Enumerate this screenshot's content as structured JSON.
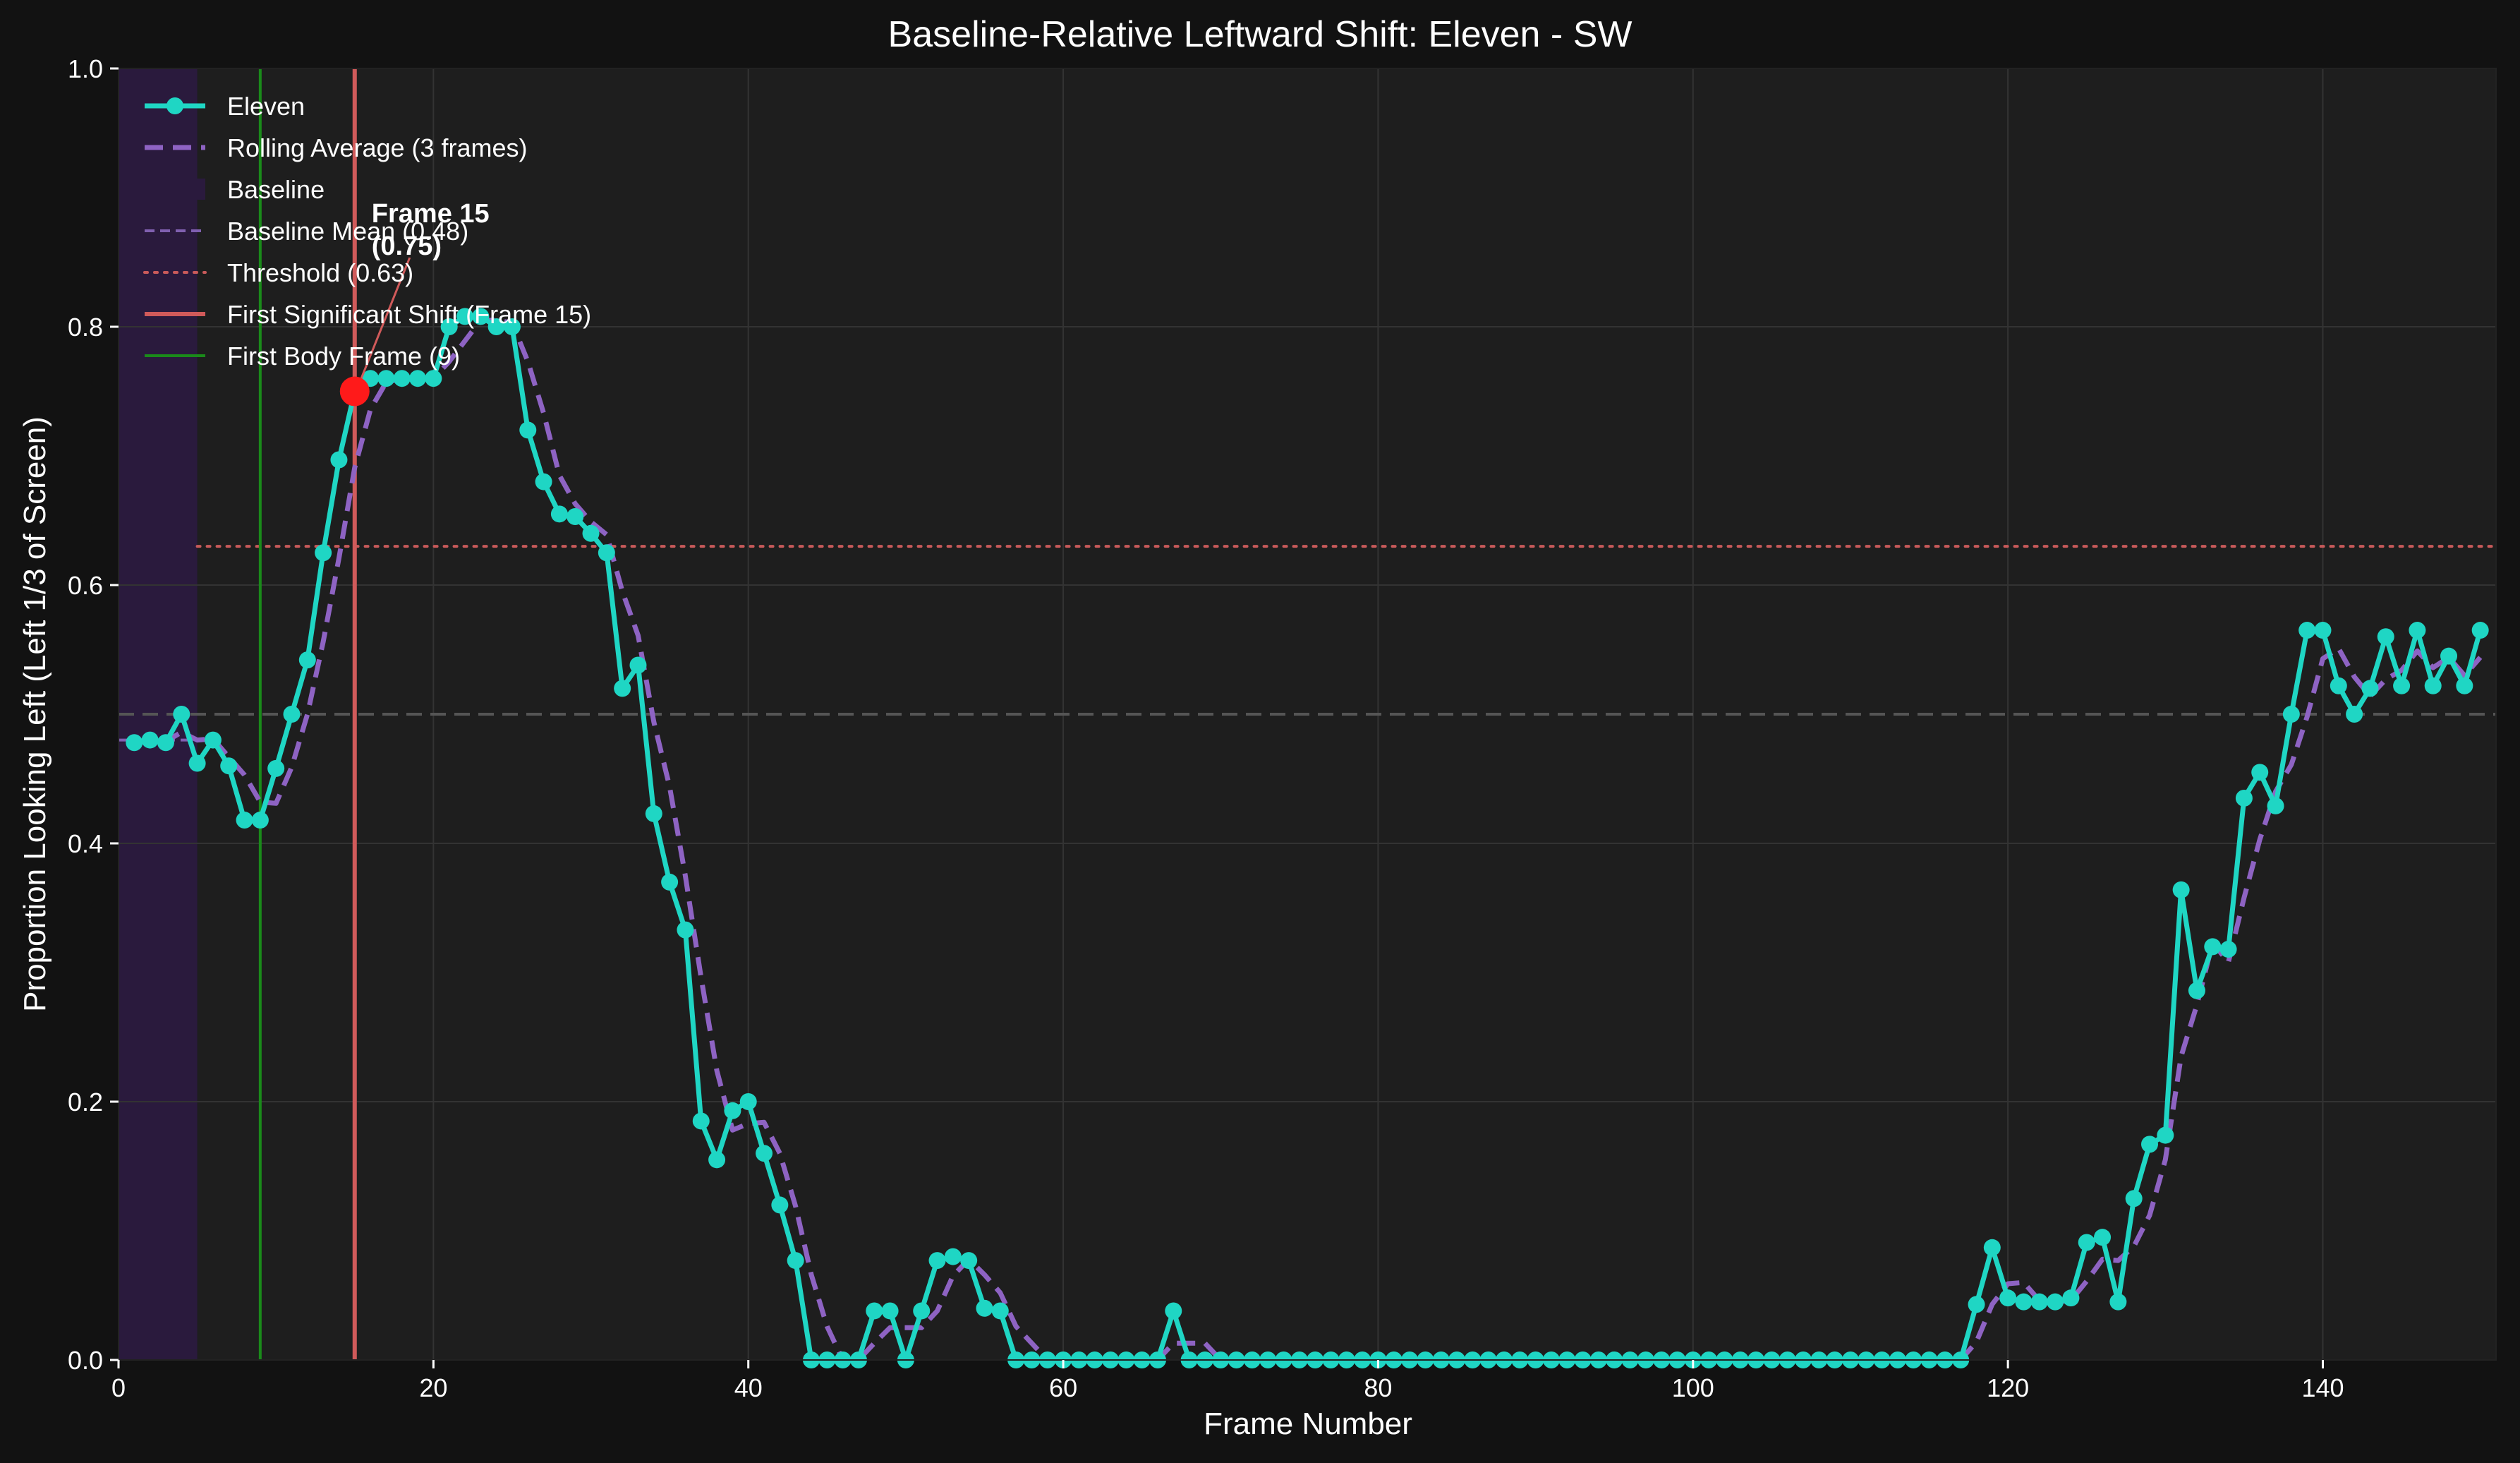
{
  "chart_data": {
    "type": "line",
    "title": "Baseline-Relative Leftward Shift: Eleven - SW",
    "xlabel": "Frame Number",
    "ylabel": "Proportion Looking Left (Left 1/3 of Screen)",
    "xlim": [
      0,
      151
    ],
    "ylim": [
      0,
      1.0
    ],
    "xticks": [
      0,
      20,
      40,
      60,
      80,
      100,
      120,
      140
    ],
    "yticks": [
      0.0,
      0.2,
      0.4,
      0.6,
      0.8,
      1.0
    ],
    "xtick_labels": [
      "0",
      "20",
      "40",
      "60",
      "80",
      "100",
      "120",
      "140"
    ],
    "ytick_labels": [
      "0.0",
      "0.2",
      "0.4",
      "0.6",
      "0.8",
      "1.0"
    ],
    "grid": true,
    "legend_position": "upper-left",
    "colors": {
      "eleven": "#1fd6c4",
      "rolling": "#8e63c3",
      "baseline_band": "#2a1a3d",
      "baseline_mean": "#8060b0",
      "threshold": "#c85a5a",
      "shift_line": "#d05a5a",
      "body_line": "#1a8a1a",
      "ref_line": "#555555",
      "highlight": "#ff1a1a"
    },
    "baseline_span": [
      0,
      5
    ],
    "reference_line": 0.5,
    "baseline_mean": 0.48,
    "threshold": 0.63,
    "first_shift_frame": 15,
    "first_body_frame": 9,
    "highlight_point": {
      "x": 15,
      "y": 0.75,
      "label_line1": "Frame 15",
      "label_line2": "(0.75)"
    },
    "legend": [
      {
        "label": "Eleven",
        "style": "line-marker"
      },
      {
        "label": "Rolling Average (3 frames)",
        "style": "dashed"
      },
      {
        "label": "Baseline",
        "style": "patch"
      },
      {
        "label": "Baseline Mean (0.48)",
        "style": "dashed-small"
      },
      {
        "label": "Threshold (0.63)",
        "style": "dotted"
      },
      {
        "label": "First Significant Shift (Frame 15)",
        "style": "solid-red"
      },
      {
        "label": "First Body Frame (9)",
        "style": "solid-green"
      }
    ],
    "series": [
      {
        "name": "Eleven",
        "x": [
          1,
          2,
          3,
          4,
          5,
          6,
          7,
          8,
          9,
          10,
          11,
          12,
          13,
          14,
          15,
          16,
          17,
          18,
          19,
          20,
          21,
          22,
          23,
          24,
          25,
          26,
          27,
          28,
          29,
          30,
          31,
          32,
          33,
          34,
          35,
          36,
          37,
          38,
          39,
          40,
          41,
          42,
          43,
          44,
          45,
          46,
          47,
          48,
          49,
          50,
          51,
          52,
          53,
          54,
          55,
          56,
          57,
          58,
          59,
          60,
          61,
          62,
          63,
          64,
          65,
          66,
          67,
          68,
          69,
          70,
          71,
          72,
          73,
          74,
          75,
          76,
          77,
          78,
          79,
          80,
          81,
          82,
          83,
          84,
          85,
          86,
          87,
          88,
          89,
          90,
          91,
          92,
          93,
          94,
          95,
          96,
          97,
          98,
          99,
          100,
          101,
          102,
          103,
          104,
          105,
          106,
          107,
          108,
          109,
          110,
          111,
          112,
          113,
          114,
          115,
          116,
          117,
          118,
          119,
          120,
          121,
          122,
          123,
          124,
          125,
          126,
          127,
          128,
          129,
          130,
          131,
          132,
          133,
          134,
          135,
          136,
          137,
          138,
          139,
          140,
          141,
          142,
          143,
          144,
          145,
          146,
          147,
          148,
          149,
          150
        ],
        "y": [
          0.478,
          0.48,
          0.478,
          0.5,
          0.462,
          0.48,
          0.46,
          0.418,
          0.418,
          0.458,
          0.5,
          0.542,
          0.625,
          0.697,
          0.75,
          0.76,
          0.76,
          0.76,
          0.76,
          0.76,
          0.8,
          0.808,
          0.808,
          0.8,
          0.8,
          0.72,
          0.68,
          0.655,
          0.653,
          0.64,
          0.625,
          0.52,
          0.538,
          0.423,
          0.37,
          0.333,
          0.185,
          0.155,
          0.193,
          0.2,
          0.16,
          0.12,
          0.077,
          0.0,
          0.0,
          0.0,
          0.0,
          0.038,
          0.038,
          0.0,
          0.038,
          0.077,
          0.08,
          0.077,
          0.04,
          0.038,
          0.0,
          0.0,
          0.0,
          0.0,
          0.0,
          0.0,
          0.0,
          0.0,
          0.0,
          0.0,
          0.038,
          0.0,
          0.0,
          0.0,
          0.0,
          0.0,
          0.0,
          0.0,
          0.0,
          0.0,
          0.0,
          0.0,
          0.0,
          0.0,
          0.0,
          0.0,
          0.0,
          0.0,
          0.0,
          0.0,
          0.0,
          0.0,
          0.0,
          0.0,
          0.0,
          0.0,
          0.0,
          0.0,
          0.0,
          0.0,
          0.0,
          0.0,
          0.0,
          0.0,
          0.0,
          0.0,
          0.0,
          0.0,
          0.0,
          0.0,
          0.0,
          0.0,
          0.0,
          0.0,
          0.0,
          0.0,
          0.0,
          0.0,
          0.0,
          0.0,
          0.0,
          0.043,
          0.087,
          0.048,
          0.045,
          0.045,
          0.045,
          0.048,
          0.091,
          0.095,
          0.045,
          0.125,
          0.167,
          0.174,
          0.364,
          0.286,
          0.32,
          0.318,
          0.435,
          0.455,
          0.429,
          0.5,
          0.565,
          0.565,
          0.522,
          0.5,
          0.52,
          0.56,
          0.522,
          0.565,
          0.522,
          0.545,
          0.522,
          0.565
        ]
      },
      {
        "name": "Rolling Average (3 frames)",
        "x": [
          1,
          2,
          3,
          4,
          5,
          6,
          7,
          8,
          9,
          10,
          11,
          12,
          13,
          14,
          15,
          16,
          17,
          18,
          19,
          20,
          21,
          22,
          23,
          24,
          25,
          26,
          27,
          28,
          29,
          30,
          31,
          32,
          33,
          34,
          35,
          36,
          37,
          38,
          39,
          40,
          41,
          42,
          43,
          44,
          45,
          46,
          47,
          48,
          49,
          50,
          51,
          52,
          53,
          54,
          55,
          56,
          57,
          58,
          59,
          60,
          61,
          62,
          63,
          64,
          65,
          66,
          67,
          68,
          69,
          70,
          71,
          72,
          73,
          74,
          75,
          76,
          77,
          78,
          79,
          80,
          81,
          82,
          83,
          84,
          85,
          86,
          87,
          88,
          89,
          90,
          91,
          92,
          93,
          94,
          95,
          96,
          97,
          98,
          99,
          100,
          101,
          102,
          103,
          104,
          105,
          106,
          107,
          108,
          109,
          110,
          111,
          112,
          113,
          114,
          115,
          116,
          117,
          118,
          119,
          120,
          121,
          122,
          123,
          124,
          125,
          126,
          127,
          128,
          129,
          130,
          131,
          132,
          133,
          134,
          135,
          136,
          137,
          138,
          139,
          140,
          141,
          142,
          143,
          144,
          145,
          146,
          147,
          148,
          149,
          150
        ],
        "y": [
          0.478,
          0.479,
          0.479,
          0.486,
          0.48,
          0.481,
          0.467,
          0.453,
          0.432,
          0.431,
          0.459,
          0.5,
          0.556,
          0.621,
          0.691,
          0.736,
          0.757,
          0.76,
          0.76,
          0.76,
          0.773,
          0.789,
          0.805,
          0.805,
          0.803,
          0.773,
          0.733,
          0.685,
          0.663,
          0.649,
          0.639,
          0.595,
          0.561,
          0.494,
          0.444,
          0.375,
          0.296,
          0.224,
          0.178,
          0.183,
          0.184,
          0.16,
          0.119,
          0.066,
          0.026,
          0.0,
          0.0,
          0.013,
          0.025,
          0.025,
          0.025,
          0.038,
          0.065,
          0.078,
          0.066,
          0.052,
          0.026,
          0.013,
          0.0,
          0.0,
          0.0,
          0.0,
          0.0,
          0.0,
          0.0,
          0.0,
          0.013,
          0.013,
          0.013,
          0.0,
          0.0,
          0.0,
          0.0,
          0.0,
          0.0,
          0.0,
          0.0,
          0.0,
          0.0,
          0.0,
          0.0,
          0.0,
          0.0,
          0.0,
          0.0,
          0.0,
          0.0,
          0.0,
          0.0,
          0.0,
          0.0,
          0.0,
          0.0,
          0.0,
          0.0,
          0.0,
          0.0,
          0.0,
          0.0,
          0.0,
          0.0,
          0.0,
          0.0,
          0.0,
          0.0,
          0.0,
          0.0,
          0.0,
          0.0,
          0.0,
          0.0,
          0.0,
          0.0,
          0.0,
          0.0,
          0.0,
          0.0,
          0.014,
          0.043,
          0.059,
          0.06,
          0.046,
          0.045,
          0.046,
          0.061,
          0.078,
          0.077,
          0.088,
          0.112,
          0.155,
          0.235,
          0.275,
          0.323,
          0.308,
          0.358,
          0.403,
          0.44,
          0.461,
          0.498,
          0.543,
          0.551,
          0.529,
          0.514,
          0.527,
          0.534,
          0.549,
          0.536,
          0.544,
          0.53,
          0.544
        ]
      }
    ]
  }
}
